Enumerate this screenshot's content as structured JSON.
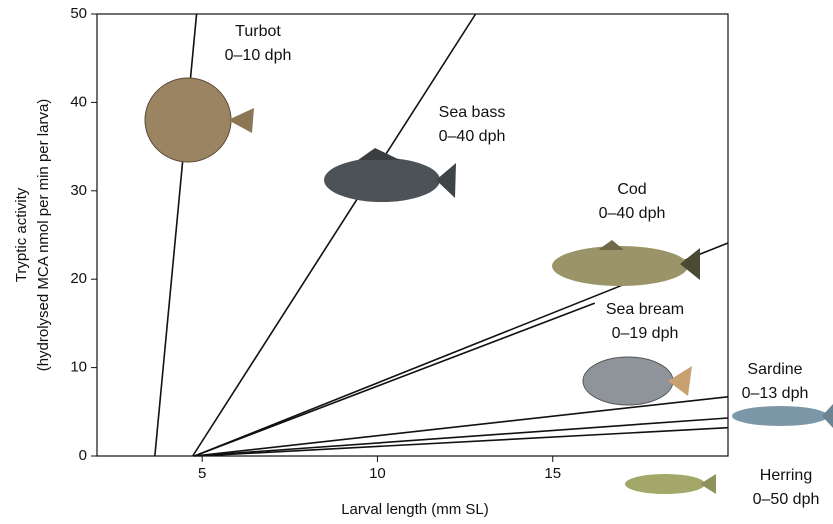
{
  "chart_data": {
    "type": "line",
    "xlabel": "Larval length (mm SL)",
    "ylabel": [
      "Tryptic activity",
      "(hydrolysed MCA nmol per min per larva)"
    ],
    "xlim": [
      2,
      20
    ],
    "ylim": [
      0,
      50
    ],
    "xticks": [
      5,
      10,
      15
    ],
    "yticks": [
      0,
      10,
      20,
      30,
      40,
      50
    ],
    "color": "#111111",
    "series": [
      {
        "name": "Turbot",
        "note": "0–10 dph",
        "x": [
          3.65,
          4.84
        ],
        "values": [
          0,
          50
        ]
      },
      {
        "name": "Sea bass",
        "note": "0–40 dph",
        "x": [
          4.73,
          12.8
        ],
        "values": [
          0,
          50
        ]
      },
      {
        "name": "Cod",
        "note": "0–40 dph",
        "x": [
          4.78,
          20
        ],
        "values": [
          0,
          24.1
        ]
      },
      {
        "name": "Sea bream",
        "note": "0–19 dph",
        "x": [
          4.78,
          16.2
        ],
        "values": [
          0,
          17.3
        ]
      },
      {
        "name": "Sardine",
        "note": "0–13 dph",
        "x": [
          4.78,
          20
        ],
        "values": [
          0,
          6.7
        ]
      },
      {
        "name": "Herring",
        "note": "0–50 dph",
        "x": [
          4.78,
          20
        ],
        "values": [
          0,
          4.3
        ]
      },
      {
        "x": [
          4.9,
          20
        ],
        "values": [
          0,
          3.2
        ]
      }
    ]
  }
}
